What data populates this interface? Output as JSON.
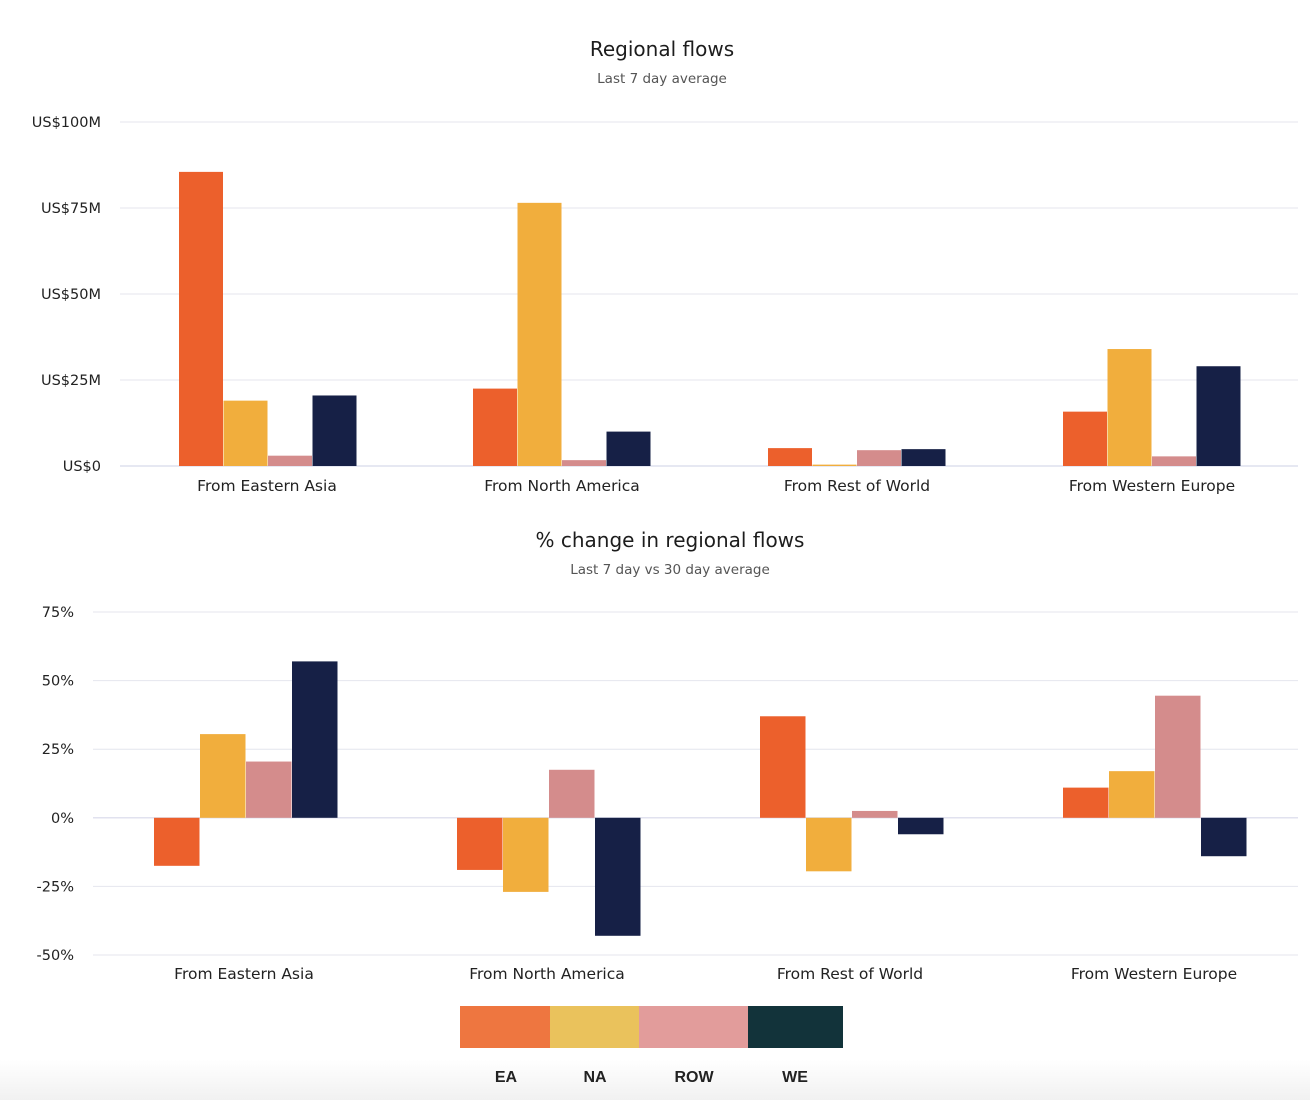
{
  "charts": [
    {
      "title": "Regional flows",
      "subtitle": "Last 7 day average"
    },
    {
      "title": "% change in regional flows",
      "subtitle": "Last 7 day vs 30 day average"
    }
  ],
  "legend": {
    "items": [
      {
        "label": "EA",
        "color": "#ee7640"
      },
      {
        "label": "NA",
        "color": "#eac25c"
      },
      {
        "label": "ROW",
        "color": "#e29c9b"
      },
      {
        "label": "WE",
        "color": "#12333a"
      }
    ]
  },
  "chart_data": [
    {
      "type": "bar",
      "title": "Regional flows",
      "subtitle": "Last 7 day average",
      "categories": [
        "From Eastern Asia",
        "From North America",
        "From Rest of World",
        "From Western Europe"
      ],
      "series": [
        {
          "name": "EA",
          "color": "#ec602c",
          "values": [
            85.5,
            22.5,
            5.2,
            15.8
          ]
        },
        {
          "name": "NA",
          "color": "#f1ae3d",
          "values": [
            19.0,
            76.5,
            0.4,
            34.0
          ]
        },
        {
          "name": "ROW",
          "color": "#d48c8c",
          "values": [
            3.0,
            1.7,
            4.6,
            2.8
          ]
        },
        {
          "name": "WE",
          "color": "#162046",
          "values": [
            20.5,
            10.0,
            4.9,
            29.0
          ]
        }
      ],
      "ylim": [
        0,
        100
      ],
      "yticks": [
        0,
        25,
        50,
        75,
        100
      ],
      "ytick_labels": [
        "US$0",
        "US$25M",
        "US$50M",
        "US$75M",
        "US$100M"
      ],
      "grid": true
    },
    {
      "type": "bar",
      "title": "% change in regional flows",
      "subtitle": "Last 7 day vs 30 day average",
      "categories": [
        "From Eastern Asia",
        "From North America",
        "From Rest of World",
        "From Western Europe"
      ],
      "series": [
        {
          "name": "EA",
          "color": "#ec602c",
          "values": [
            -17.5,
            -19,
            37,
            11
          ]
        },
        {
          "name": "NA",
          "color": "#f1ae3d",
          "values": [
            30.5,
            -27,
            -19.5,
            17
          ]
        },
        {
          "name": "ROW",
          "color": "#d48c8c",
          "values": [
            20.5,
            17.5,
            2.5,
            44.5
          ]
        },
        {
          "name": "WE",
          "color": "#162046",
          "values": [
            57,
            -43,
            -6,
            -14
          ]
        }
      ],
      "ylim": [
        -50,
        75
      ],
      "yticks": [
        -50,
        -25,
        0,
        25,
        50,
        75
      ],
      "ytick_labels": [
        "-50%",
        "-25%",
        "0%",
        "25%",
        "50%",
        "75%"
      ],
      "grid": true
    }
  ]
}
